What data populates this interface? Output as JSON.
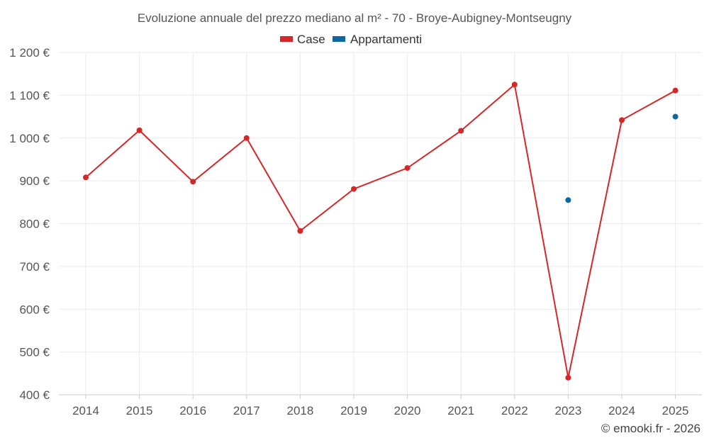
{
  "chart_data": {
    "type": "line",
    "title": "Evoluzione annuale del prezzo mediano al m² - 70 - Broye-Aubigney-Montseugny",
    "categories": [
      "2014",
      "2015",
      "2016",
      "2017",
      "2018",
      "2019",
      "2020",
      "2021",
      "2022",
      "2023",
      "2024",
      "2025"
    ],
    "ylim": [
      400,
      1200
    ],
    "yticks": [
      400,
      500,
      600,
      700,
      800,
      900,
      1000,
      1100,
      1200
    ],
    "ytick_labels": [
      "400 €",
      "500 €",
      "600 €",
      "700 €",
      "800 €",
      "900 €",
      "1 000 €",
      "1 100 €",
      "1 200 €"
    ],
    "grid": true,
    "legend_position": "top-center",
    "series": [
      {
        "name": "Case",
        "color": "#d62728",
        "values": [
          908,
          1018,
          898,
          1000,
          783,
          881,
          930,
          1017,
          1125,
          440,
          1042,
          1111
        ]
      },
      {
        "name": "Appartamenti",
        "color": "#0d67a3",
        "values": [
          null,
          null,
          null,
          null,
          null,
          null,
          null,
          null,
          null,
          855,
          null,
          1050
        ]
      }
    ],
    "credit": "© emooki.fr - 2026"
  }
}
